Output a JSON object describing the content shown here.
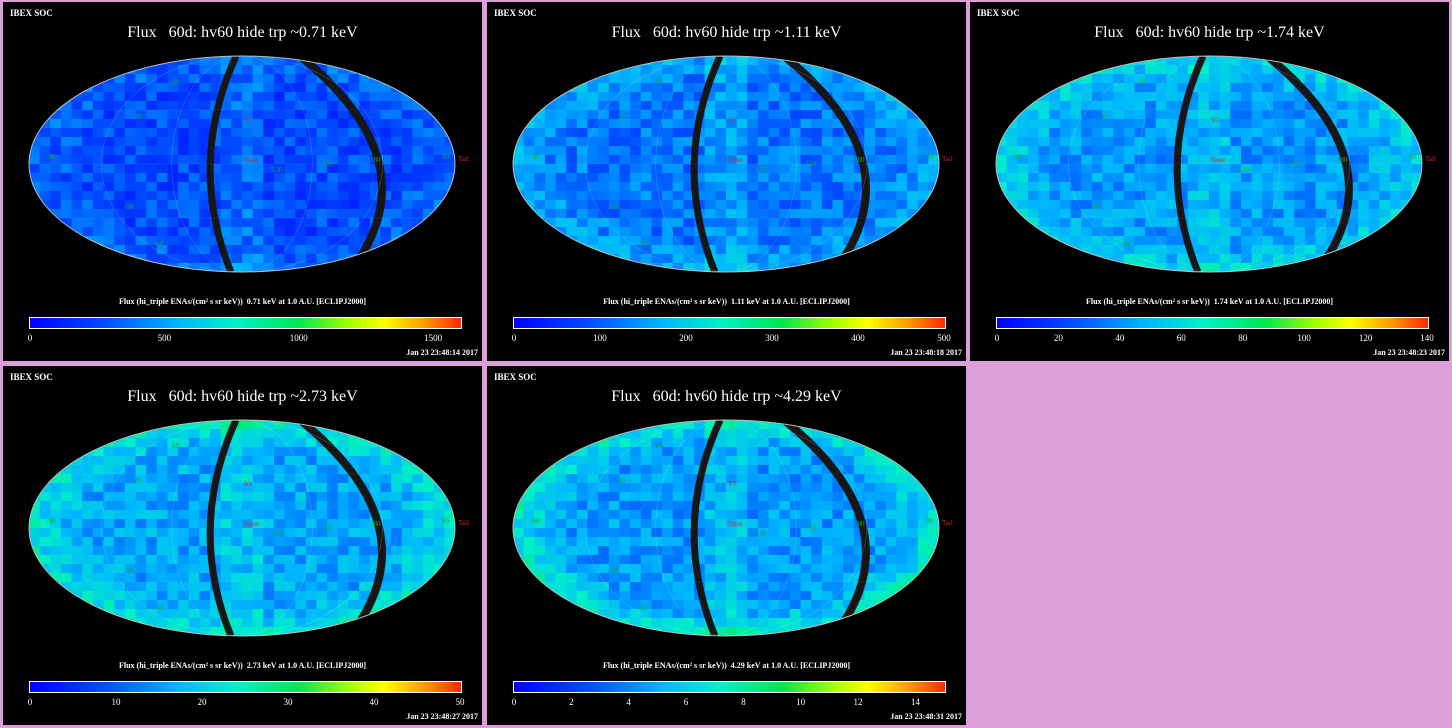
{
  "panels": [
    {
      "soc": "IBEX SOC",
      "title": "Flux   60d: hv60 hide trp ~0.71 keV",
      "caption": "Flux (hi_triple ENAs/(cm² s sr keV))  0.71 keV at 1.0 A.U. [ECLIPJ2000]",
      "ticks": [
        "0",
        "500",
        "1000",
        "1500"
      ],
      "tick_values": [
        0,
        500,
        1000,
        1500
      ],
      "max": 1600,
      "timestamp": "Jan 23 23:48:14 2017"
    },
    {
      "soc": "IBEX SOC",
      "title": "Flux   60d: hv60 hide trp ~1.11 keV",
      "caption": "Flux (hi_triple ENAs/(cm² s sr keV))  1.11 keV at 1.0 A.U. [ECLIPJ2000]",
      "ticks": [
        "0",
        "100",
        "200",
        "300",
        "400",
        "500"
      ],
      "tick_values": [
        0,
        100,
        200,
        300,
        400,
        500
      ],
      "max": 500,
      "timestamp": "Jan 23 23:48:18 2017"
    },
    {
      "soc": "IBEX SOC",
      "title": "Flux   60d: hv60 hide trp ~1.74 keV",
      "caption": "Flux (hi_triple ENAs/(cm² s sr keV))  1.74 keV at 1.0 A.U. [ECLIPJ2000]",
      "ticks": [
        "0",
        "20",
        "40",
        "60",
        "80",
        "100",
        "120",
        "140"
      ],
      "tick_values": [
        0,
        20,
        40,
        60,
        80,
        100,
        120,
        140
      ],
      "max": 140,
      "timestamp": "Jan 23 23:48:23 2017"
    },
    {
      "soc": "IBEX SOC",
      "title": "Flux   60d: hv60 hide trp ~2.73 keV",
      "caption": "Flux (hi_triple ENAs/(cm² s sr keV))  2.73 keV at 1.0 A.U. [ECLIPJ2000]",
      "ticks": [
        "0",
        "10",
        "20",
        "30",
        "40",
        "50"
      ],
      "tick_values": [
        0,
        10,
        20,
        30,
        40,
        50
      ],
      "max": 50,
      "timestamp": "Jan 23 23:48:27 2017"
    },
    {
      "soc": "IBEX SOC",
      "title": "Flux   60d: hv60 hide trp ~4.29 keV",
      "caption": "Flux (hi_triple ENAs/(cm² s sr keV))  4.29 keV at 1.0 A.U. [ECLIPJ2000]",
      "ticks": [
        "0",
        "2",
        "4",
        "6",
        "8",
        "10",
        "12",
        "14"
      ],
      "tick_values": [
        0,
        2,
        4,
        6,
        8,
        10,
        12,
        14
      ],
      "max": 15,
      "timestamp": "Jan 23 23:48:31 2017"
    }
  ],
  "map_labels": {
    "nose": "Nose",
    "v1": "V1",
    "tail": "Tail",
    "lat_60": "60",
    "lat_30": "30",
    "lat_m30": "-30",
    "lat_m60": "-60",
    "lon_90": "90",
    "lon_m90": "-90",
    "lon_120": "120",
    "lon_150": "150",
    "lon_180": "180"
  },
  "colors": {
    "background": "#dd9ed9",
    "panel": "#000000",
    "label_green": "#22aa22",
    "label_red": "#dd2222"
  }
}
